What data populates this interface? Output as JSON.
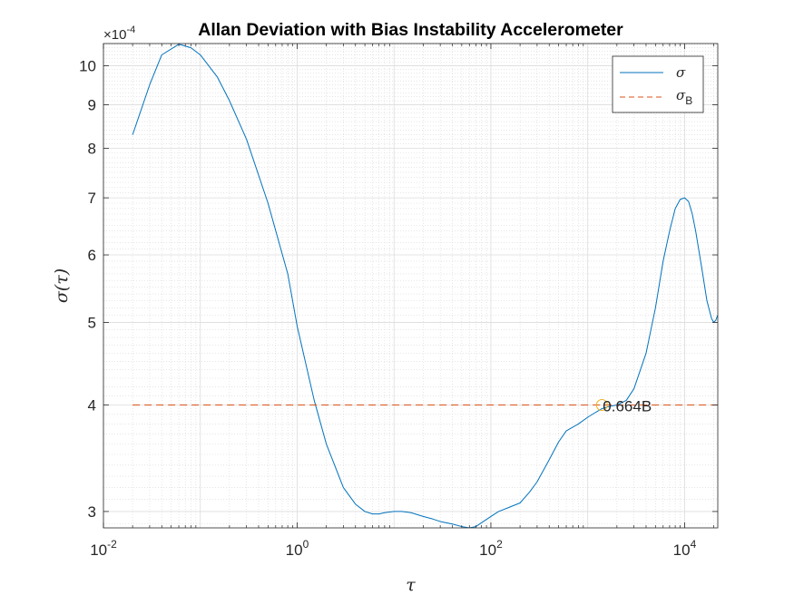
{
  "chart_data": {
    "type": "line",
    "title": "Allan Deviation with Bias Instability Accelerometer",
    "xlabel": "τ",
    "ylabel_parts": {
      "main": "σ(",
      "var": "τ",
      "close": ")"
    },
    "x_scale": "log",
    "y_scale": "log",
    "xlim": [
      0.01,
      22000
    ],
    "ylim": [
      0.000287,
      0.001062
    ],
    "y_exponent_label": {
      "prefix": "×10",
      "exp": "-4"
    },
    "x_ticks": [
      {
        "value": 0.01,
        "base": "10",
        "exp": "-2"
      },
      {
        "value": 1,
        "base": "10",
        "exp": "0"
      },
      {
        "value": 100,
        "base": "10",
        "exp": "2"
      },
      {
        "value": 10000,
        "base": "10",
        "exp": "4"
      }
    ],
    "y_ticks": [
      {
        "value": 0.0003,
        "label": "3"
      },
      {
        "value": 0.0004,
        "label": "4"
      },
      {
        "value": 0.0005,
        "label": "5"
      },
      {
        "value": 0.0006,
        "label": "6"
      },
      {
        "value": 0.0007,
        "label": "7"
      },
      {
        "value": 0.0008,
        "label": "8"
      },
      {
        "value": 0.0009,
        "label": "9"
      },
      {
        "value": 0.001,
        "label": "10"
      }
    ],
    "grid": true,
    "legend_position": "top-right",
    "series": [
      {
        "name": "σ",
        "style": "solid",
        "color": "#0072BD",
        "x": [
          0.02,
          0.03,
          0.04,
          0.06,
          0.08,
          0.1,
          0.15,
          0.2,
          0.3,
          0.5,
          0.8,
          1.0,
          1.5,
          2,
          3,
          4,
          5,
          6,
          7,
          8,
          10,
          12,
          15,
          20,
          25,
          30,
          40,
          50,
          60,
          70,
          80,
          100,
          120,
          150,
          200,
          250,
          300,
          400,
          500,
          600,
          800,
          1000,
          1200,
          1400,
          1600,
          2000,
          2500,
          3000,
          4000,
          5000,
          6000,
          7000,
          8000,
          9000,
          10000,
          11000,
          12000,
          13000,
          15000,
          17000,
          19000,
          20000,
          21000,
          22000
        ],
        "y": [
          0.00083,
          0.00095,
          0.00103,
          0.00106,
          0.00105,
          0.00103,
          0.00097,
          0.00091,
          0.00082,
          0.00069,
          0.00057,
          0.000495,
          0.000405,
          0.00036,
          0.00032,
          0.000306,
          0.0003,
          0.000298,
          0.000298,
          0.000299,
          0.0003,
          0.0003,
          0.000299,
          0.000296,
          0.000294,
          0.000292,
          0.00029,
          0.000288,
          0.000287,
          0.000288,
          0.000291,
          0.000296,
          0.0003,
          0.000303,
          0.000307,
          0.000316,
          0.000325,
          0.000345,
          0.000362,
          0.000373,
          0.00038,
          0.000387,
          0.000392,
          0.000396,
          0.000398,
          0.0004,
          0.000405,
          0.000418,
          0.00046,
          0.00052,
          0.00059,
          0.00064,
          0.00068,
          0.000697,
          0.0007,
          0.000693,
          0.00067,
          0.00064,
          0.00058,
          0.00053,
          0.000505,
          0.0005,
          0.000503,
          0.00051
        ]
      },
      {
        "name": "σ",
        "name_subscript": "B",
        "style": "dashed",
        "color": "#D95319",
        "x": [
          0.02,
          22000
        ],
        "y": [
          0.0004,
          0.0004
        ]
      }
    ],
    "annotations": [
      {
        "x": 1400,
        "y": 0.0004,
        "label": "0.664B",
        "marker": "circle",
        "marker_color": "#EDB120"
      }
    ]
  }
}
